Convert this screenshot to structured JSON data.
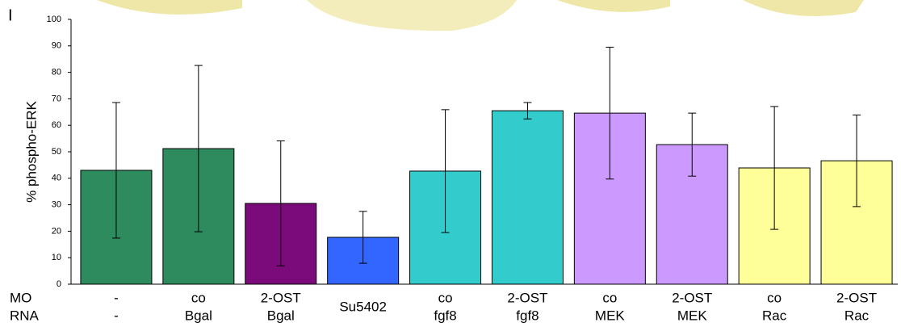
{
  "chart_data": {
    "type": "bar",
    "panel_label": "I",
    "y_label": "% phospho-ERK",
    "row_labels": [
      "MO",
      "RNA"
    ],
    "categories": [
      [
        "-",
        "-"
      ],
      [
        "co",
        "Bgal"
      ],
      [
        "2-OST",
        "Bgal"
      ],
      [
        "Su5402"
      ],
      [
        "co",
        "fgf8"
      ],
      [
        "2-OST",
        "fgf8"
      ],
      [
        "co",
        "MEK"
      ],
      [
        "2-OST",
        "MEK"
      ],
      [
        "co",
        "Rac"
      ],
      [
        "2-OST",
        "Rac"
      ]
    ],
    "values": [
      43,
      51.2,
      30.5,
      17.7,
      42.7,
      65.5,
      64.6,
      52.7,
      43.9,
      46.6
    ],
    "errors": [
      25.6,
      31.4,
      23.6,
      9.8,
      23.2,
      3.1,
      24.9,
      11.9,
      23.2,
      17.3
    ],
    "colors": [
      "#2e8b5e",
      "#2e8b5e",
      "#7b0a7b",
      "#3366ff",
      "#33cccc",
      "#33cccc",
      "#cc99ff",
      "#cc99ff",
      "#ffff99",
      "#ffff99"
    ],
    "ylim": [
      0,
      100
    ],
    "yticks": [
      0,
      10,
      20,
      30,
      40,
      50,
      60,
      70,
      80,
      90,
      100
    ]
  }
}
